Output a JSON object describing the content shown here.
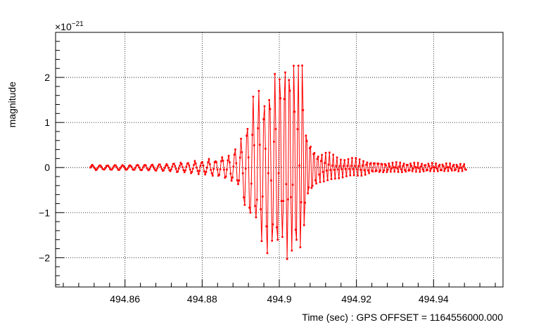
{
  "chart_data": {
    "type": "line",
    "title": "",
    "xlabel": "Time (sec) : GPS OFFSET = 1164556000.000",
    "ylabel": "magnitude",
    "y_multiplier": "×10",
    "y_multiplier_exponent": "−21",
    "xlim": [
      494.842,
      494.958
    ],
    "ylim": [
      -2.65,
      3.0
    ],
    "x_ticks": [
      494.86,
      494.88,
      494.9,
      494.92,
      494.94
    ],
    "x_tick_labels": [
      "494.86",
      "494.88",
      "494.9",
      "494.92",
      "494.94"
    ],
    "y_ticks": [
      -2,
      -1,
      0,
      1,
      2
    ],
    "y_tick_labels": [
      "−2",
      "−1",
      "0",
      "1",
      "2"
    ],
    "grid": true,
    "line_color": "#ff0000",
    "marker": "square",
    "series": [
      {
        "x_start": 494.851,
        "x_step": 0.000244140625,
        "envelope_x": [
          494.851,
          494.86,
          494.87,
          494.878,
          494.884,
          494.888,
          494.89,
          494.892,
          494.894,
          494.896,
          494.898,
          494.9,
          494.902,
          494.904,
          494.905,
          494.906,
          494.907,
          494.91,
          494.914,
          494.918,
          494.925,
          494.935,
          494.9485
        ],
        "envelope_y": [
          0.05,
          0.05,
          0.07,
          0.12,
          0.18,
          0.3,
          0.55,
          1.05,
          1.45,
          1.65,
          1.8,
          1.95,
          2.05,
          2.15,
          2.3,
          2.5,
          0.8,
          0.35,
          0.25,
          0.2,
          0.12,
          0.09,
          0.07
        ],
        "period_x": [
          494.851,
          494.88,
          494.89,
          494.9,
          494.905,
          494.907,
          494.9485
        ],
        "period_y": [
          0.002,
          0.0018,
          0.0016,
          0.0013,
          0.0011,
          0.001,
          0.0009
        ]
      }
    ]
  }
}
